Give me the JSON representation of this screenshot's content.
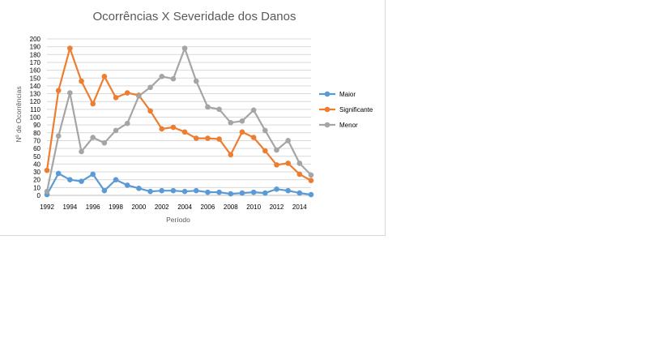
{
  "chart_data": {
    "type": "line",
    "title": "Ocorrências X Severidade dos Danos",
    "xlabel": "Período",
    "ylabel": "Nº de Ocorrências",
    "x": [
      1992,
      1993,
      1994,
      1995,
      1996,
      1997,
      1998,
      1999,
      2000,
      2001,
      2002,
      2003,
      2004,
      2005,
      2006,
      2007,
      2008,
      2009,
      2010,
      2011,
      2012,
      2013,
      2014,
      2015
    ],
    "x_tick_labels": [
      "1992",
      "1994",
      "1996",
      "1998",
      "2000",
      "2002",
      "2004",
      "2006",
      "2008",
      "2010",
      "2012",
      "2014"
    ],
    "ylim": [
      0,
      200
    ],
    "y_tick_step": 10,
    "grid": true,
    "legend_position": "right",
    "series": [
      {
        "name": "Maior",
        "color": "#5b9bd5",
        "values": [
          1,
          28,
          20,
          18,
          27,
          6,
          20,
          13,
          9,
          5,
          6,
          6,
          5,
          6,
          4,
          4,
          2,
          3,
          4,
          3,
          8,
          6,
          3,
          1
        ]
      },
      {
        "name": "Significante",
        "color": "#ed7d31",
        "values": [
          32,
          134,
          188,
          146,
          117,
          152,
          125,
          131,
          128,
          108,
          85,
          87,
          81,
          73,
          73,
          72,
          52,
          81,
          74,
          57,
          39,
          41,
          27,
          19
        ]
      },
      {
        "name": "Menor",
        "color": "#a5a5a5",
        "values": [
          5,
          76,
          131,
          56,
          74,
          67,
          83,
          92,
          127,
          138,
          152,
          149,
          188,
          146,
          113,
          110,
          93,
          95,
          109,
          83,
          58,
          70,
          41,
          26
        ]
      }
    ]
  }
}
